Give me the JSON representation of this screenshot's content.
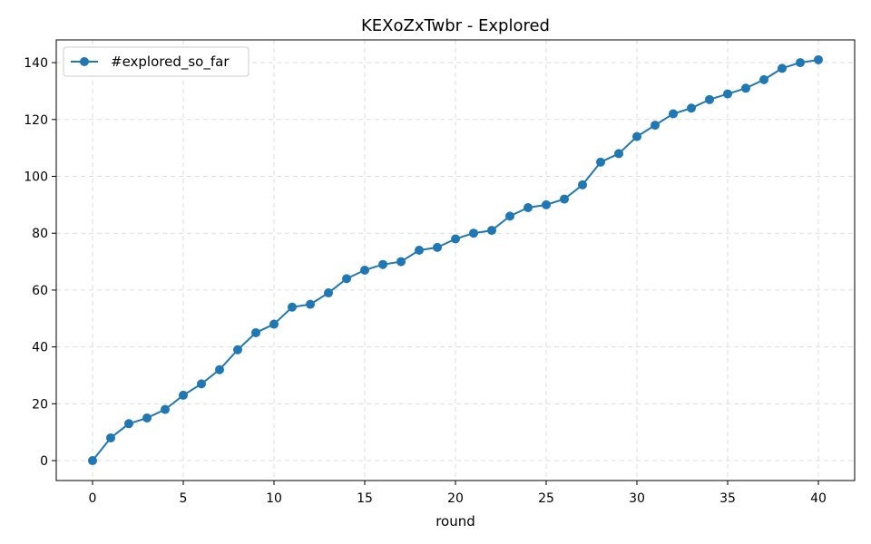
{
  "chart_data": {
    "type": "line",
    "title": "KEXoZxTwbr - Explored",
    "xlabel": "round",
    "ylabel": "",
    "xlim": [
      -2,
      42
    ],
    "ylim": [
      -7,
      148
    ],
    "xticks": [
      0,
      5,
      10,
      15,
      20,
      25,
      30,
      35,
      40
    ],
    "yticks": [
      0,
      20,
      40,
      60,
      80,
      100,
      120,
      140
    ],
    "grid": true,
    "legend_position": "top-left",
    "series": [
      {
        "name": "#explored_so_far",
        "color": "#1f77b4",
        "marker": "circle",
        "x": [
          0,
          1,
          2,
          3,
          4,
          5,
          6,
          7,
          8,
          9,
          10,
          11,
          12,
          13,
          14,
          15,
          16,
          17,
          18,
          19,
          20,
          21,
          22,
          23,
          24,
          25,
          26,
          27,
          28,
          29,
          30,
          31,
          32,
          33,
          34,
          35,
          36,
          37,
          38,
          39,
          40
        ],
        "values": [
          0,
          8,
          13,
          15,
          18,
          23,
          27,
          32,
          39,
          45,
          48,
          54,
          55,
          59,
          64,
          67,
          69,
          70,
          74,
          75,
          78,
          80,
          81,
          86,
          89,
          90,
          92,
          97,
          105,
          108,
          114,
          118,
          122,
          124,
          127,
          129,
          131,
          134,
          138,
          140,
          141
        ]
      }
    ]
  }
}
